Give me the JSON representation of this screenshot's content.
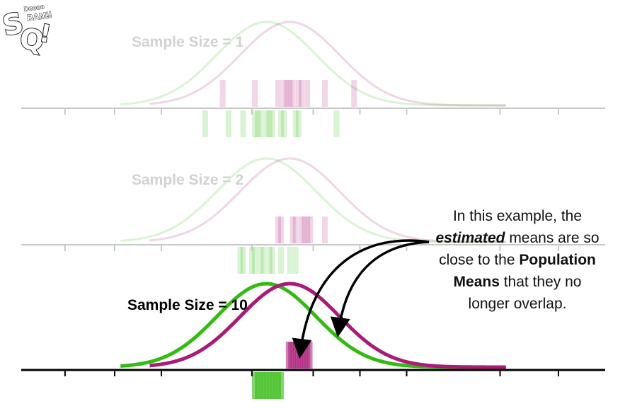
{
  "logo": {
    "line1": "Doooo",
    "line2": "BAM!!",
    "letters": "SQ!"
  },
  "panels": [
    {
      "label": "Sample Size = 1",
      "state": "faded"
    },
    {
      "label": "Sample Size = 2",
      "state": "faded"
    },
    {
      "label": "Sample Size = 10",
      "state": "active"
    }
  ],
  "annotation": {
    "line1": "In this example, the",
    "em": "estimated",
    "line2_rest": " means are so",
    "line3": "close to the ",
    "strong1": "Population",
    "strong2": "Means",
    "line4_rest": " that they no",
    "line5": "longer overlap."
  },
  "colors": {
    "green": "#33bb11",
    "magenta": "#aa1a77",
    "axis": "#000000",
    "faded_axis": "#c8c8c8"
  },
  "distributions": {
    "green_mean": 0.42,
    "magenta_mean": 0.46,
    "green_ticks_size1": [
      0.315,
      0.355,
      0.38,
      0.4,
      0.405,
      0.41,
      0.42,
      0.425,
      0.43,
      0.445,
      0.45,
      0.47,
      0.475,
      0.54
    ],
    "magenta_ticks_size1": [
      0.345,
      0.4,
      0.44,
      0.45,
      0.455,
      0.46,
      0.465,
      0.475,
      0.48,
      0.49,
      0.52,
      0.57
    ],
    "green_ticks_size2": [
      0.375,
      0.38,
      0.395,
      0.4,
      0.41,
      0.415,
      0.425,
      0.43,
      0.445,
      0.46,
      0.47
    ],
    "magenta_ticks_size2": [
      0.44,
      0.445,
      0.465,
      0.47,
      0.48,
      0.485,
      0.49,
      0.495,
      0.52
    ],
    "green_ticks_size10": [
      0.4,
      0.405,
      0.41,
      0.415,
      0.42,
      0.425,
      0.43,
      0.435,
      0.44,
      0.445
    ],
    "magenta_ticks_size10": [
      0.458,
      0.462,
      0.466,
      0.47,
      0.474,
      0.478,
      0.482,
      0.486,
      0.49,
      0.494
    ]
  }
}
